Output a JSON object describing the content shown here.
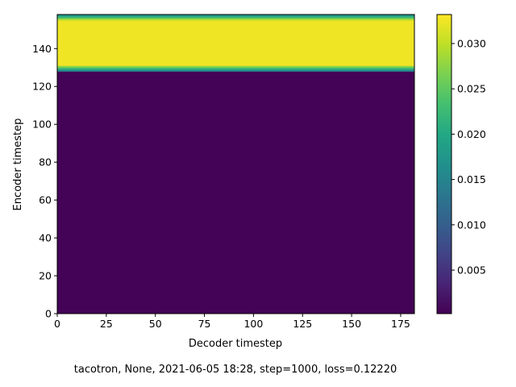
{
  "chart_data": {
    "type": "heatmap",
    "title": "",
    "xlabel": "Decoder timestep",
    "ylabel": "Encoder timestep",
    "caption": "tacotron, None, 2021-06-05 18:28, step=1000, loss=0.12220",
    "xlim": [
      0,
      182
    ],
    "ylim": [
      0,
      158
    ],
    "x_ticks": [
      0,
      25,
      50,
      75,
      100,
      125,
      150,
      175
    ],
    "y_ticks": [
      0,
      20,
      40,
      60,
      80,
      100,
      120,
      140
    ],
    "colormap": "viridis",
    "color_range": [
      0.0002,
      0.0332
    ],
    "colorbar_ticks": [
      0.005,
      0.01,
      0.015,
      0.02,
      0.025,
      0.03
    ],
    "colorbar_tick_labels": [
      "0.005",
      "0.010",
      "0.015",
      "0.020",
      "0.025",
      "0.030"
    ],
    "row_bands": [
      {
        "encoder_from": 0,
        "encoder_to": 128,
        "value": 0.0004
      },
      {
        "encoder_from": 128,
        "encoder_to": 129,
        "value": 0.016
      },
      {
        "encoder_from": 129,
        "encoder_to": 130,
        "value": 0.022
      },
      {
        "encoder_from": 130,
        "encoder_to": 131,
        "value": 0.027
      },
      {
        "encoder_from": 131,
        "encoder_to": 155,
        "value": 0.0325
      },
      {
        "encoder_from": 155,
        "encoder_to": 156,
        "value": 0.029
      },
      {
        "encoder_from": 156,
        "encoder_to": 157,
        "value": 0.023
      },
      {
        "encoder_from": 157,
        "encoder_to": 158,
        "value": 0.018
      }
    ]
  }
}
